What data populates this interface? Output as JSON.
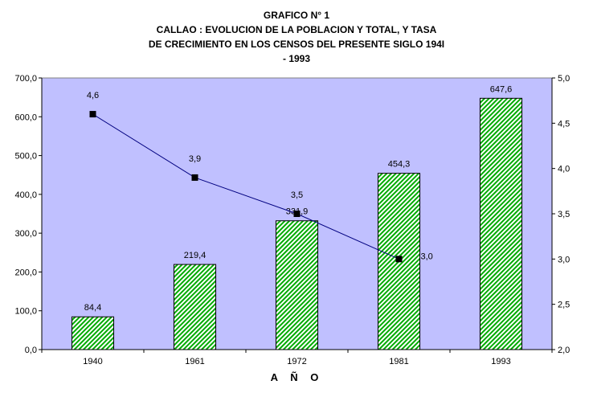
{
  "title_lines": [
    "GRAFICO N° 1",
    "CALLAO : EVOLUCION DE LA POBLACION Y TOTAL, Y TASA",
    "DE CRECIMIENTO EN LOS CENSOS DEL PRESENTE SIGLO 194I",
    "- 1993"
  ],
  "chart_data": {
    "type": "bar",
    "title": "GRAFICO N° 1 CALLAO : EVOLUCION DE LA POBLACION Y TOTAL, Y TASA DE CRECIMIENTO EN LOS CENSOS DEL PRESENTE SIGLO 194I - 1993",
    "xlabel": "A Ñ O",
    "ylabel": "",
    "y2label": "",
    "categories": [
      "1940",
      "1961",
      "1972",
      "1981",
      "1993"
    ],
    "series": [
      {
        "type": "bar",
        "axis": "left",
        "values": [
          84.4,
          219.4,
          331.9,
          454.3,
          647.6
        ],
        "labels": [
          "84,4",
          "219,4",
          "331,9",
          "454,3",
          "647,6"
        ]
      },
      {
        "type": "line",
        "axis": "right",
        "values": [
          4.6,
          3.9,
          3.5,
          3.0,
          null
        ],
        "labels": [
          "4,6",
          "3,9",
          "3,5",
          "3,0",
          null
        ]
      }
    ],
    "ylim": [
      0,
      700
    ],
    "y2lim": [
      2.0,
      5.0
    ],
    "yticks": [
      "0,0",
      "100,0",
      "200,0",
      "300,0",
      "400,0",
      "500,0",
      "600,0",
      "700,0"
    ],
    "y2ticks": [
      "2,0",
      "2,5",
      "3,0",
      "3,5",
      "4,0",
      "4,5",
      "5,0"
    ],
    "grid": false,
    "legend": "none",
    "colors": {
      "plot_background": "#c0c0ff",
      "bar_fill_dark": "#00aa00",
      "bar_fill_light": "#ffffff",
      "bar_border": "#000000",
      "line": "#000080",
      "marker": "#000000"
    }
  }
}
